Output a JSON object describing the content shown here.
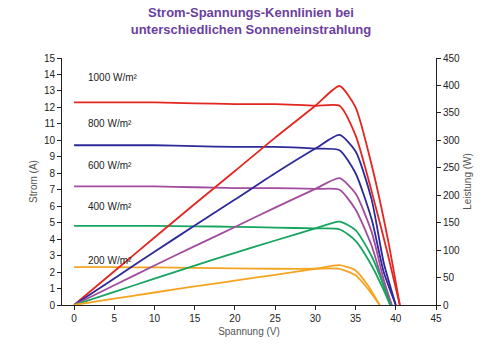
{
  "chart_data": {
    "type": "line",
    "title": "Strom-Spannungs-Kennlinien bei\nunterschiedlichen Sonneneinstrahlung",
    "x_label": "Spannung (V)",
    "y_label": "Strom (A)",
    "y2_label": "Leistung (W)",
    "xlim": [
      -1.5,
      45
    ],
    "xticks": [
      0,
      5,
      10,
      15,
      20,
      25,
      30,
      35,
      40,
      45
    ],
    "ylim": [
      0,
      15
    ],
    "yticks": [
      0,
      1,
      2,
      3,
      4,
      5,
      6,
      7,
      8,
      9,
      10,
      11,
      12,
      13,
      14,
      15
    ],
    "y2lim": [
      0,
      450
    ],
    "y2ticks": [
      0,
      50,
      100,
      150,
      200,
      250,
      300,
      350,
      400,
      450
    ],
    "grid": false,
    "annotations": [
      {
        "text": "1000 W/m²",
        "x": 1.5,
        "y": 13.8
      },
      {
        "text": "800 W/m²",
        "x": 1.5,
        "y": 11.0
      },
      {
        "text": "600 W/m²",
        "x": 1.5,
        "y": 8.5
      },
      {
        "text": "400 W/m²",
        "x": 1.5,
        "y": 6.0
      },
      {
        "text": "200 W/m²",
        "x": 1.5,
        "y": 2.7
      }
    ],
    "series": [
      {
        "color": "#e3261f",
        "x": [
          0,
          5,
          10,
          15,
          20,
          25,
          30,
          33,
          35,
          37,
          39,
          40.5
        ],
        "values": [
          12.3,
          12.3,
          12.3,
          12.25,
          12.2,
          12.2,
          12.1,
          12.1,
          10.3,
          6.9,
          3.1,
          0
        ]
      },
      {
        "color": "#e3261f",
        "axis": "y2",
        "x": [
          0,
          5,
          10,
          15,
          20,
          25,
          30,
          33,
          35,
          37,
          39,
          40.5
        ],
        "values": [
          0,
          61.5,
          123,
          184,
          244,
          305,
          363,
          399,
          360,
          255,
          121,
          0
        ]
      },
      {
        "color": "#2e2a9a",
        "x": [
          0,
          5,
          10,
          15,
          20,
          25,
          30,
          33,
          35,
          37,
          38.5,
          40
        ],
        "values": [
          9.7,
          9.7,
          9.7,
          9.65,
          9.6,
          9.6,
          9.5,
          9.4,
          8.0,
          5.2,
          2.0,
          0
        ]
      },
      {
        "color": "#2e2a9a",
        "axis": "y2",
        "x": [
          0,
          5,
          10,
          15,
          20,
          25,
          30,
          33,
          35,
          37,
          38.5,
          40
        ],
        "values": [
          0,
          48.5,
          97,
          144.8,
          192,
          240,
          285,
          310,
          280,
          192,
          77,
          0
        ]
      },
      {
        "color": "#a24c9e",
        "x": [
          0,
          5,
          10,
          15,
          20,
          25,
          30,
          33,
          35,
          37,
          38.5,
          39.5
        ],
        "values": [
          7.2,
          7.2,
          7.2,
          7.15,
          7.1,
          7.1,
          7.05,
          7.0,
          5.8,
          3.6,
          1.2,
          0
        ]
      },
      {
        "color": "#a24c9e",
        "axis": "y2",
        "x": [
          0,
          5,
          10,
          15,
          20,
          25,
          30,
          33,
          35,
          37,
          38.5,
          39.5
        ],
        "values": [
          0,
          36,
          72,
          107.3,
          142,
          177.5,
          211.5,
          231,
          203,
          133.2,
          46.2,
          0
        ]
      },
      {
        "color": "#16a55f",
        "x": [
          0,
          5,
          10,
          15,
          20,
          25,
          30,
          33,
          35,
          37,
          38.5,
          39.3
        ],
        "values": [
          4.8,
          4.8,
          4.8,
          4.78,
          4.75,
          4.7,
          4.65,
          4.6,
          3.9,
          2.4,
          0.9,
          0
        ]
      },
      {
        "color": "#16a55f",
        "axis": "y2",
        "x": [
          0,
          5,
          10,
          15,
          20,
          25,
          30,
          33,
          35,
          37,
          38.5,
          39.3
        ],
        "values": [
          0,
          24,
          48,
          71.7,
          95,
          117.5,
          139.5,
          151.8,
          136.5,
          88.8,
          34.7,
          0
        ]
      },
      {
        "color": "#f5a422",
        "x": [
          0,
          5,
          10,
          15,
          20,
          25,
          30,
          33,
          35,
          36.5,
          38
        ],
        "values": [
          2.3,
          2.3,
          2.28,
          2.25,
          2.22,
          2.2,
          2.2,
          2.2,
          1.8,
          1.0,
          0
        ]
      },
      {
        "color": "#f5a422",
        "axis": "y2",
        "x": [
          0,
          5,
          10,
          15,
          20,
          25,
          30,
          33,
          35,
          36.5,
          38
        ],
        "values": [
          0,
          11.5,
          22.8,
          33.75,
          44.4,
          55,
          66,
          72.6,
          63,
          36.5,
          0
        ]
      }
    ]
  }
}
